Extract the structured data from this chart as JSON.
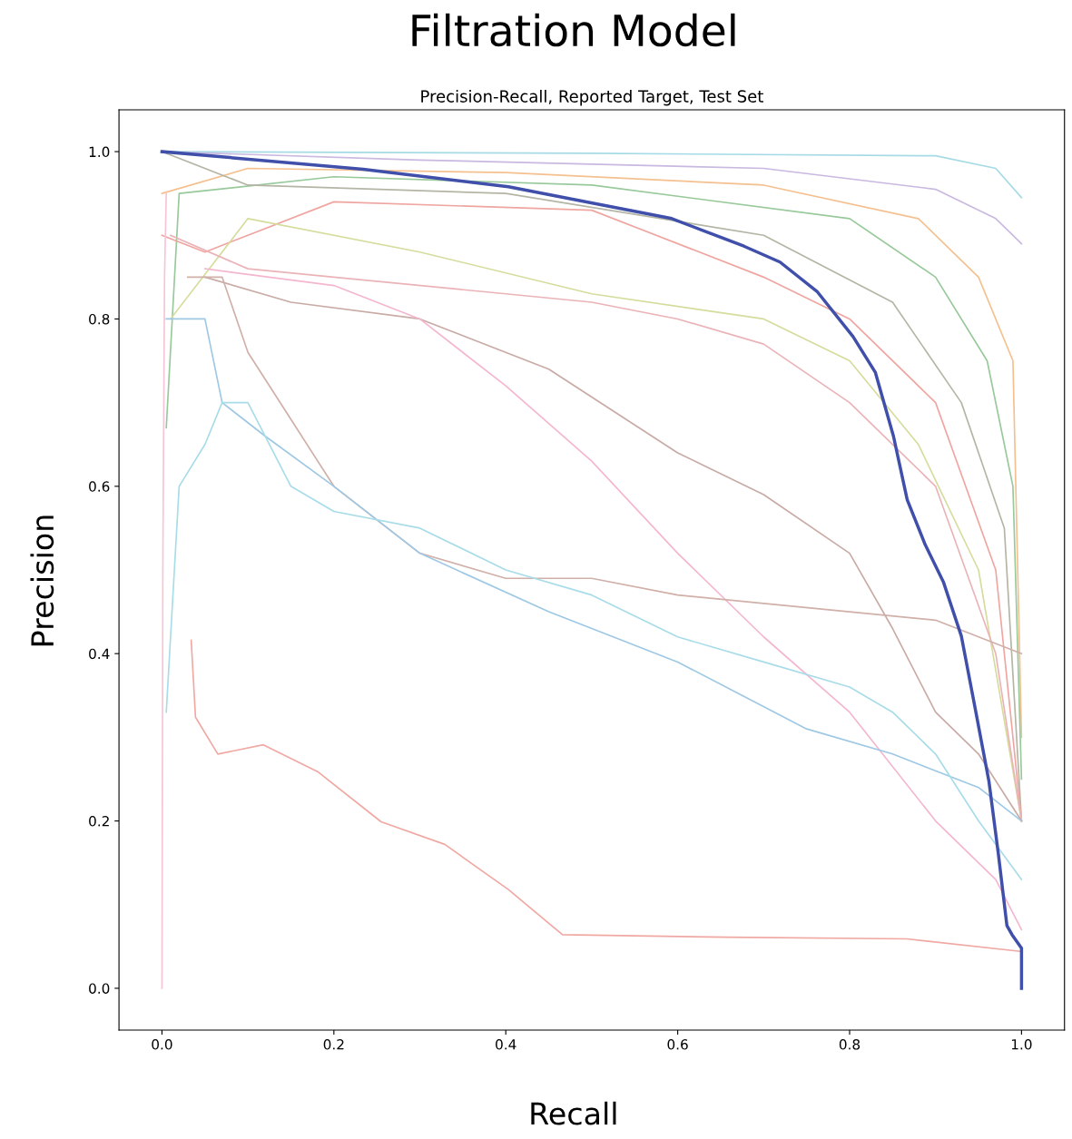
{
  "chart_data": {
    "type": "line",
    "title": "Filtration Model",
    "subtitle": "Precision-Recall, Reported Target, Test Set",
    "xlabel": "Recall",
    "ylabel": "Precision",
    "xlim": [
      -0.05,
      1.05
    ],
    "ylim": [
      -0.05,
      1.05
    ],
    "xticks": [
      {
        "value": 0,
        "label": "0.0"
      },
      {
        "value": 0.2,
        "label": "0.2"
      },
      {
        "value": 0.4,
        "label": "0.4"
      },
      {
        "value": 0.6,
        "label": "0.6"
      },
      {
        "value": 0.8,
        "label": "0.8"
      },
      {
        "value": 1,
        "label": "1.0"
      }
    ],
    "yticks": [
      {
        "value": 0,
        "label": "0.0"
      },
      {
        "value": 0.2,
        "label": "0.2"
      },
      {
        "value": 0.4,
        "label": "0.4"
      },
      {
        "value": 0.6,
        "label": "0.6"
      },
      {
        "value": 0.8,
        "label": "0.8"
      },
      {
        "value": 1,
        "label": "1.0"
      }
    ],
    "grid": false,
    "marker": "none",
    "line_style": "solid",
    "series": [
      {
        "color": "#a6dbe6",
        "x": [
          0,
          0.5,
          0.9,
          0.97,
          1.0
        ],
        "values": [
          1.0,
          0.998,
          0.995,
          0.98,
          0.945
        ]
      },
      {
        "color": "#c9b8e0",
        "x": [
          0,
          0.3,
          0.7,
          0.9,
          0.97,
          1.0
        ],
        "values": [
          1.0,
          0.99,
          0.98,
          0.955,
          0.92,
          0.89
        ]
      },
      {
        "color": "#f5c08f",
        "x": [
          0,
          0.1,
          0.4,
          0.7,
          0.88,
          0.95,
          0.99,
          1.0
        ],
        "values": [
          0.95,
          0.98,
          0.975,
          0.96,
          0.92,
          0.85,
          0.75,
          0.3
        ]
      },
      {
        "color": "#98c99a",
        "x": [
          0.005,
          0.02,
          0.2,
          0.5,
          0.8,
          0.9,
          0.96,
          0.99,
          1.0
        ],
        "values": [
          0.67,
          0.95,
          0.97,
          0.96,
          0.92,
          0.85,
          0.75,
          0.6,
          0.25
        ]
      },
      {
        "color": "#b5b5a5",
        "x": [
          0,
          0.1,
          0.4,
          0.7,
          0.85,
          0.93,
          0.98,
          1.0
        ],
        "values": [
          1.0,
          0.96,
          0.95,
          0.9,
          0.82,
          0.7,
          0.55,
          0.2
        ]
      },
      {
        "color": "#efa5a0",
        "x": [
          0,
          0.05,
          0.2,
          0.5,
          0.7,
          0.8,
          0.9,
          0.97,
          1.0
        ],
        "values": [
          0.9,
          0.88,
          0.94,
          0.93,
          0.85,
          0.8,
          0.7,
          0.5,
          0.2
        ]
      },
      {
        "color": "#d6dc9c",
        "x": [
          0.01,
          0.1,
          0.3,
          0.5,
          0.7,
          0.8,
          0.88,
          0.95,
          1.0
        ],
        "values": [
          0.8,
          0.92,
          0.88,
          0.83,
          0.8,
          0.75,
          0.65,
          0.5,
          0.2
        ]
      },
      {
        "color": "#eab3b8",
        "x": [
          0.01,
          0.1,
          0.2,
          0.4,
          0.5,
          0.6,
          0.7,
          0.8,
          0.9,
          0.97,
          1.0
        ],
        "values": [
          0.9,
          0.86,
          0.85,
          0.83,
          0.82,
          0.8,
          0.77,
          0.7,
          0.6,
          0.4,
          0.2
        ]
      },
      {
        "color": "#c9aba5",
        "x": [
          0.05,
          0.15,
          0.3,
          0.45,
          0.6,
          0.7,
          0.8,
          0.85,
          0.9,
          0.95,
          1.0
        ],
        "values": [
          0.85,
          0.82,
          0.8,
          0.74,
          0.64,
          0.59,
          0.52,
          0.43,
          0.33,
          0.28,
          0.2
        ]
      },
      {
        "color": "#f4b6cf",
        "x": [
          0.05,
          0.2,
          0.3,
          0.4,
          0.5,
          0.6,
          0.7,
          0.8,
          0.9,
          0.97,
          1.0
        ],
        "values": [
          0.86,
          0.84,
          0.8,
          0.72,
          0.63,
          0.52,
          0.42,
          0.33,
          0.2,
          0.13,
          0.07
        ]
      },
      {
        "color": "#d0b0a8",
        "x": [
          0.03,
          0.07,
          0.1,
          0.15,
          0.2,
          0.3,
          0.4,
          0.5,
          0.6,
          0.8,
          0.9,
          1.0
        ],
        "values": [
          0.85,
          0.85,
          0.76,
          0.68,
          0.6,
          0.52,
          0.49,
          0.49,
          0.47,
          0.45,
          0.44,
          0.4
        ]
      },
      {
        "color": "#9ec8e4",
        "x": [
          0.005,
          0.05,
          0.07,
          0.12,
          0.2,
          0.3,
          0.45,
          0.6,
          0.75,
          0.85,
          0.95,
          1.0
        ],
        "values": [
          0.8,
          0.8,
          0.7,
          0.66,
          0.6,
          0.52,
          0.45,
          0.39,
          0.31,
          0.28,
          0.24,
          0.2
        ]
      },
      {
        "color": "#a8dce8",
        "x": [
          0.005,
          0.02,
          0.05,
          0.07,
          0.1,
          0.15,
          0.2,
          0.3,
          0.4,
          0.5,
          0.6,
          0.7,
          0.8,
          0.85,
          0.9,
          0.95,
          1.0
        ],
        "values": [
          0.33,
          0.6,
          0.65,
          0.7,
          0.7,
          0.6,
          0.57,
          0.55,
          0.5,
          0.47,
          0.42,
          0.39,
          0.36,
          0.33,
          0.28,
          0.2,
          0.13
        ]
      },
      {
        "color": "#f0a8a3",
        "x": [
          0.034,
          0.039,
          0.065,
          0.118,
          0.181,
          0.255,
          0.329,
          0.403,
          0.466,
          0.656,
          0.867,
          1.0
        ],
        "values": [
          0.416,
          0.324,
          0.28,
          0.291,
          0.259,
          0.199,
          0.172,
          0.118,
          0.064,
          0.061,
          0.059,
          0.044
        ]
      },
      {
        "color": "#f6c4d6",
        "x": [
          0,
          0.001,
          0.003,
          0.005
        ],
        "values": [
          0.0,
          0.5,
          0.85,
          0.95
        ]
      },
      {
        "color": "#3f4faa",
        "x": [
          0,
          0.234,
          0.403,
          0.593,
          0.677,
          0.719,
          0.762,
          0.804,
          0.83,
          0.851,
          0.867,
          0.888,
          0.909,
          0.93,
          0.946,
          0.962,
          0.973,
          0.983,
          0.989,
          1.0,
          1.0
        ],
        "values": [
          1.0,
          0.979,
          0.958,
          0.92,
          0.887,
          0.868,
          0.833,
          0.779,
          0.736,
          0.66,
          0.584,
          0.53,
          0.486,
          0.421,
          0.335,
          0.248,
          0.161,
          0.075,
          0.064,
          0.048,
          0.0
        ]
      }
    ]
  }
}
